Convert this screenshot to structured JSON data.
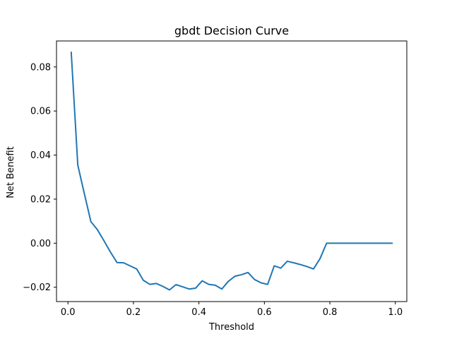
{
  "chart_data": {
    "type": "line",
    "title": "gbdt Decision Curve",
    "xlabel": "Threshold",
    "ylabel": "Net Benefit",
    "xlim": [
      -0.035,
      1.035
    ],
    "ylim": [
      -0.0265,
      0.0918
    ],
    "xticks": [
      0.0,
      0.2,
      0.4,
      0.6,
      0.8,
      1.0
    ],
    "xtick_labels": [
      "0.0",
      "0.2",
      "0.4",
      "0.6",
      "0.8",
      "1.0"
    ],
    "yticks": [
      -0.02,
      0.0,
      0.02,
      0.04,
      0.06,
      0.08
    ],
    "ytick_labels": [
      "−0.02",
      "0.00",
      "0.02",
      "0.04",
      "0.06",
      "0.08"
    ],
    "grid": false,
    "legend": "none",
    "series": [
      {
        "color": "#1f77b4",
        "x": [
          0.01,
          0.03,
          0.05,
          0.07,
          0.09,
          0.11,
          0.13,
          0.15,
          0.17,
          0.19,
          0.21,
          0.23,
          0.25,
          0.27,
          0.29,
          0.31,
          0.33,
          0.35,
          0.37,
          0.39,
          0.41,
          0.43,
          0.45,
          0.47,
          0.49,
          0.51,
          0.53,
          0.55,
          0.57,
          0.59,
          0.61,
          0.63,
          0.65,
          0.67,
          0.69,
          0.71,
          0.73,
          0.75,
          0.77,
          0.79,
          0.81,
          0.83,
          0.85,
          0.87,
          0.89,
          0.91,
          0.93,
          0.95,
          0.97,
          0.99
        ],
        "values": [
          0.0866,
          0.0355,
          0.0225,
          0.0098,
          0.0061,
          0.0011,
          -0.0041,
          -0.0088,
          -0.0089,
          -0.0103,
          -0.0117,
          -0.0168,
          -0.0187,
          -0.0183,
          -0.0196,
          -0.0212,
          -0.0188,
          -0.0198,
          -0.0208,
          -0.0204,
          -0.0171,
          -0.0187,
          -0.0191,
          -0.0208,
          -0.0173,
          -0.015,
          -0.0143,
          -0.0133,
          -0.0165,
          -0.018,
          -0.0187,
          -0.0103,
          -0.0113,
          -0.0082,
          -0.0089,
          -0.0097,
          -0.0106,
          -0.0117,
          -0.007,
          0.0,
          0.0,
          0.0,
          0.0,
          0.0,
          0.0,
          0.0,
          0.0,
          0.0,
          0.0,
          0.0
        ]
      }
    ]
  }
}
